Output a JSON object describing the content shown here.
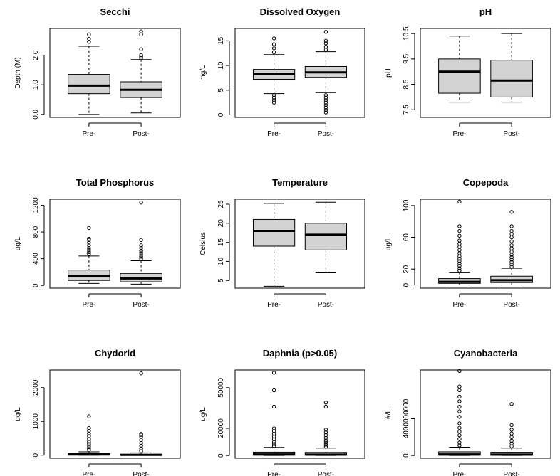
{
  "chart_data": [
    {
      "type": "boxplot",
      "title": "Secchi",
      "ylabel": "Depth (M)",
      "categories": [
        "Pre-",
        "Post-"
      ],
      "ylim": [
        -0.1,
        2.9
      ],
      "yticks": [
        0.0,
        1.0,
        2.0
      ],
      "ytick_labels": [
        "0.0",
        "1.0",
        "2.0"
      ],
      "boxes": [
        {
          "name": "Pre-",
          "whisker_low": 0.0,
          "q1": 0.7,
          "median": 0.97,
          "q3": 1.35,
          "whisker_high": 2.3,
          "outliers": [
            2.45,
            2.55,
            2.7
          ]
        },
        {
          "name": "Post-",
          "whisker_low": 0.05,
          "q1": 0.57,
          "median": 0.83,
          "q3": 1.1,
          "whisker_high": 1.85,
          "outliers": [
            1.9,
            1.95,
            2.0,
            2.2,
            2.7,
            2.8
          ]
        }
      ]
    },
    {
      "type": "boxplot",
      "title": "Dissolved Oxygen",
      "ylabel": "mg/L",
      "categories": [
        "Pre-",
        "Post-"
      ],
      "ylim": [
        -0.5,
        17.5
      ],
      "yticks": [
        0,
        5,
        10,
        15
      ],
      "ytick_labels": [
        "0",
        "5",
        "10",
        "15"
      ],
      "boxes": [
        {
          "name": "Pre-",
          "whisker_low": 4.3,
          "q1": 7.2,
          "median": 8.3,
          "q3": 9.2,
          "whisker_high": 12.2,
          "outliers": [
            2.5,
            3.0,
            3.5,
            4.0,
            12.7,
            13.5,
            14.3,
            15.5
          ]
        },
        {
          "name": "Post-",
          "whisker_low": 4.5,
          "q1": 7.6,
          "median": 8.6,
          "q3": 9.8,
          "whisker_high": 12.8,
          "outliers": [
            0.5,
            1.0,
            1.5,
            2.0,
            2.5,
            3.0,
            3.5,
            4.0,
            13.2,
            13.8,
            14.5,
            15.0,
            16.8
          ]
        }
      ]
    },
    {
      "type": "boxplot",
      "title": "pH",
      "ylabel": "pH",
      "categories": [
        "Pre-",
        "Post-"
      ],
      "ylim": [
        7.2,
        10.7
      ],
      "yticks": [
        7.5,
        8.5,
        9.5,
        10.5
      ],
      "ytick_labels": [
        "7.5",
        "8.5",
        "9.5",
        "10.5"
      ],
      "boxes": [
        {
          "name": "Pre-",
          "whisker_low": 7.8,
          "q1": 8.15,
          "median": 9.0,
          "q3": 9.5,
          "whisker_high": 10.4,
          "outliers": []
        },
        {
          "name": "Post-",
          "whisker_low": 7.8,
          "q1": 8.0,
          "median": 8.65,
          "q3": 9.45,
          "whisker_high": 10.5,
          "outliers": []
        }
      ]
    },
    {
      "type": "boxplot",
      "title": "Total Phosphorus",
      "ylabel": "ug/L",
      "categories": [
        "Pre-",
        "Post-"
      ],
      "ylim": [
        -40,
        1290
      ],
      "yticks": [
        0,
        400,
        800,
        1200
      ],
      "ytick_labels": [
        "0",
        "400",
        "800",
        "1200"
      ],
      "boxes": [
        {
          "name": "Pre-",
          "whisker_low": 30,
          "q1": 75,
          "median": 145,
          "q3": 230,
          "whisker_high": 440,
          "outliers": [
            470,
            500,
            530,
            560,
            600,
            640,
            680,
            700,
            860
          ]
        },
        {
          "name": "Post-",
          "whisker_low": 20,
          "q1": 55,
          "median": 105,
          "q3": 180,
          "whisker_high": 370,
          "outliers": [
            400,
            430,
            460,
            490,
            520,
            560,
            600,
            680,
            1240
          ]
        }
      ]
    },
    {
      "type": "boxplot",
      "title": "Temperature",
      "ylabel": "Celsius",
      "categories": [
        "Pre-",
        "Post-"
      ],
      "ylim": [
        3,
        26.3
      ],
      "yticks": [
        5,
        10,
        15,
        20,
        25
      ],
      "ytick_labels": [
        "5",
        "10",
        "15",
        "20",
        "25"
      ],
      "boxes": [
        {
          "name": "Pre-",
          "whisker_low": 3.5,
          "q1": 14.0,
          "median": 18.0,
          "q3": 21.0,
          "whisker_high": 25.2,
          "outliers": []
        },
        {
          "name": "Post-",
          "whisker_low": 7.2,
          "q1": 13.0,
          "median": 17.0,
          "q3": 20.0,
          "whisker_high": 25.5,
          "outliers": []
        }
      ]
    },
    {
      "type": "boxplot",
      "title": "Copepoda",
      "ylabel": "ug/L",
      "categories": [
        "Pre-",
        "Post-"
      ],
      "ylim": [
        -4,
        108
      ],
      "yticks": [
        0,
        20,
        60,
        100
      ],
      "ytick_labels": [
        "0",
        "20",
        "60",
        "100"
      ],
      "boxes": [
        {
          "name": "Pre-",
          "whisker_low": 0,
          "q1": 2,
          "median": 4,
          "q3": 8,
          "whisker_high": 16,
          "outliers": [
            18,
            21,
            24,
            27,
            30,
            33,
            36,
            40,
            44,
            48,
            52,
            56,
            62,
            68,
            74,
            105
          ]
        },
        {
          "name": "Post-",
          "whisker_low": 0,
          "q1": 3,
          "median": 6,
          "q3": 11,
          "whisker_high": 21,
          "outliers": [
            23,
            26,
            29,
            32,
            35,
            38,
            42,
            46,
            50,
            55,
            60,
            64,
            68,
            74,
            92
          ]
        }
      ]
    },
    {
      "type": "boxplot",
      "title": "Chydorid",
      "ylabel": "ug/L",
      "categories": [
        "Pre-",
        "Post-"
      ],
      "ylim": [
        -90,
        2520
      ],
      "yticks": [
        0,
        1000,
        2000
      ],
      "ytick_labels": [
        "0",
        "1000",
        "2000"
      ],
      "boxes": [
        {
          "name": "Pre-",
          "whisker_low": 0,
          "q1": 5,
          "median": 20,
          "q3": 50,
          "whisker_high": 100,
          "outliers": [
            150,
            200,
            260,
            330,
            400,
            480,
            560,
            640,
            720,
            800,
            1150
          ]
        },
        {
          "name": "Post-",
          "whisker_low": 0,
          "q1": 3,
          "median": 10,
          "q3": 30,
          "whisker_high": 70,
          "outliers": [
            120,
            200,
            280,
            360,
            450,
            550,
            600,
            630,
            2420
          ]
        }
      ]
    },
    {
      "type": "boxplot",
      "title": "Daphnia (p>0.05)",
      "ylabel": "ug/L",
      "categories": [
        "Pre-",
        "Post-"
      ],
      "ylim": [
        -2000,
        63000
      ],
      "yticks": [
        0,
        20000,
        50000
      ],
      "ytick_labels": [
        "0",
        "20000",
        "50000"
      ],
      "boxes": [
        {
          "name": "Pre-",
          "whisker_low": 0,
          "q1": 200,
          "median": 800,
          "q3": 2500,
          "whisker_high": 6000,
          "outliers": [
            7000,
            8500,
            10000,
            12000,
            14000,
            16000,
            18000,
            20000,
            36000,
            48000,
            61000
          ]
        },
        {
          "name": "Post-",
          "whisker_low": 0,
          "q1": 200,
          "median": 700,
          "q3": 2300,
          "whisker_high": 5500,
          "outliers": [
            6500,
            8000,
            9500,
            11000,
            13000,
            15000,
            17000,
            19000,
            36000,
            39000
          ]
        }
      ]
    },
    {
      "type": "boxplot",
      "title": "Cyanobacteria",
      "ylabel": "#/L",
      "categories": [
        "Pre-",
        "Post-"
      ],
      "ylim": [
        -300000000,
        9300000000
      ],
      "yticks": [
        0,
        4000000000
      ],
      "ytick_labels": [
        "0",
        "4000000000"
      ],
      "boxes": [
        {
          "name": "Pre-",
          "whisker_low": 0,
          "q1": 20000000,
          "median": 120000000,
          "q3": 400000000,
          "whisker_high": 900000000,
          "outliers": [
            1100000000,
            1400000000,
            1800000000,
            2200000000,
            2600000000,
            3000000000,
            3500000000,
            4200000000,
            4800000000,
            5300000000,
            5900000000,
            6400000000,
            7100000000,
            7500000000,
            9200000000
          ]
        },
        {
          "name": "Post-",
          "whisker_low": 0,
          "q1": 20000000,
          "median": 100000000,
          "q3": 350000000,
          "whisker_high": 800000000,
          "outliers": [
            1000000000,
            1300000000,
            1600000000,
            2000000000,
            2400000000,
            2800000000,
            3300000000,
            5600000000
          ]
        }
      ]
    }
  ]
}
